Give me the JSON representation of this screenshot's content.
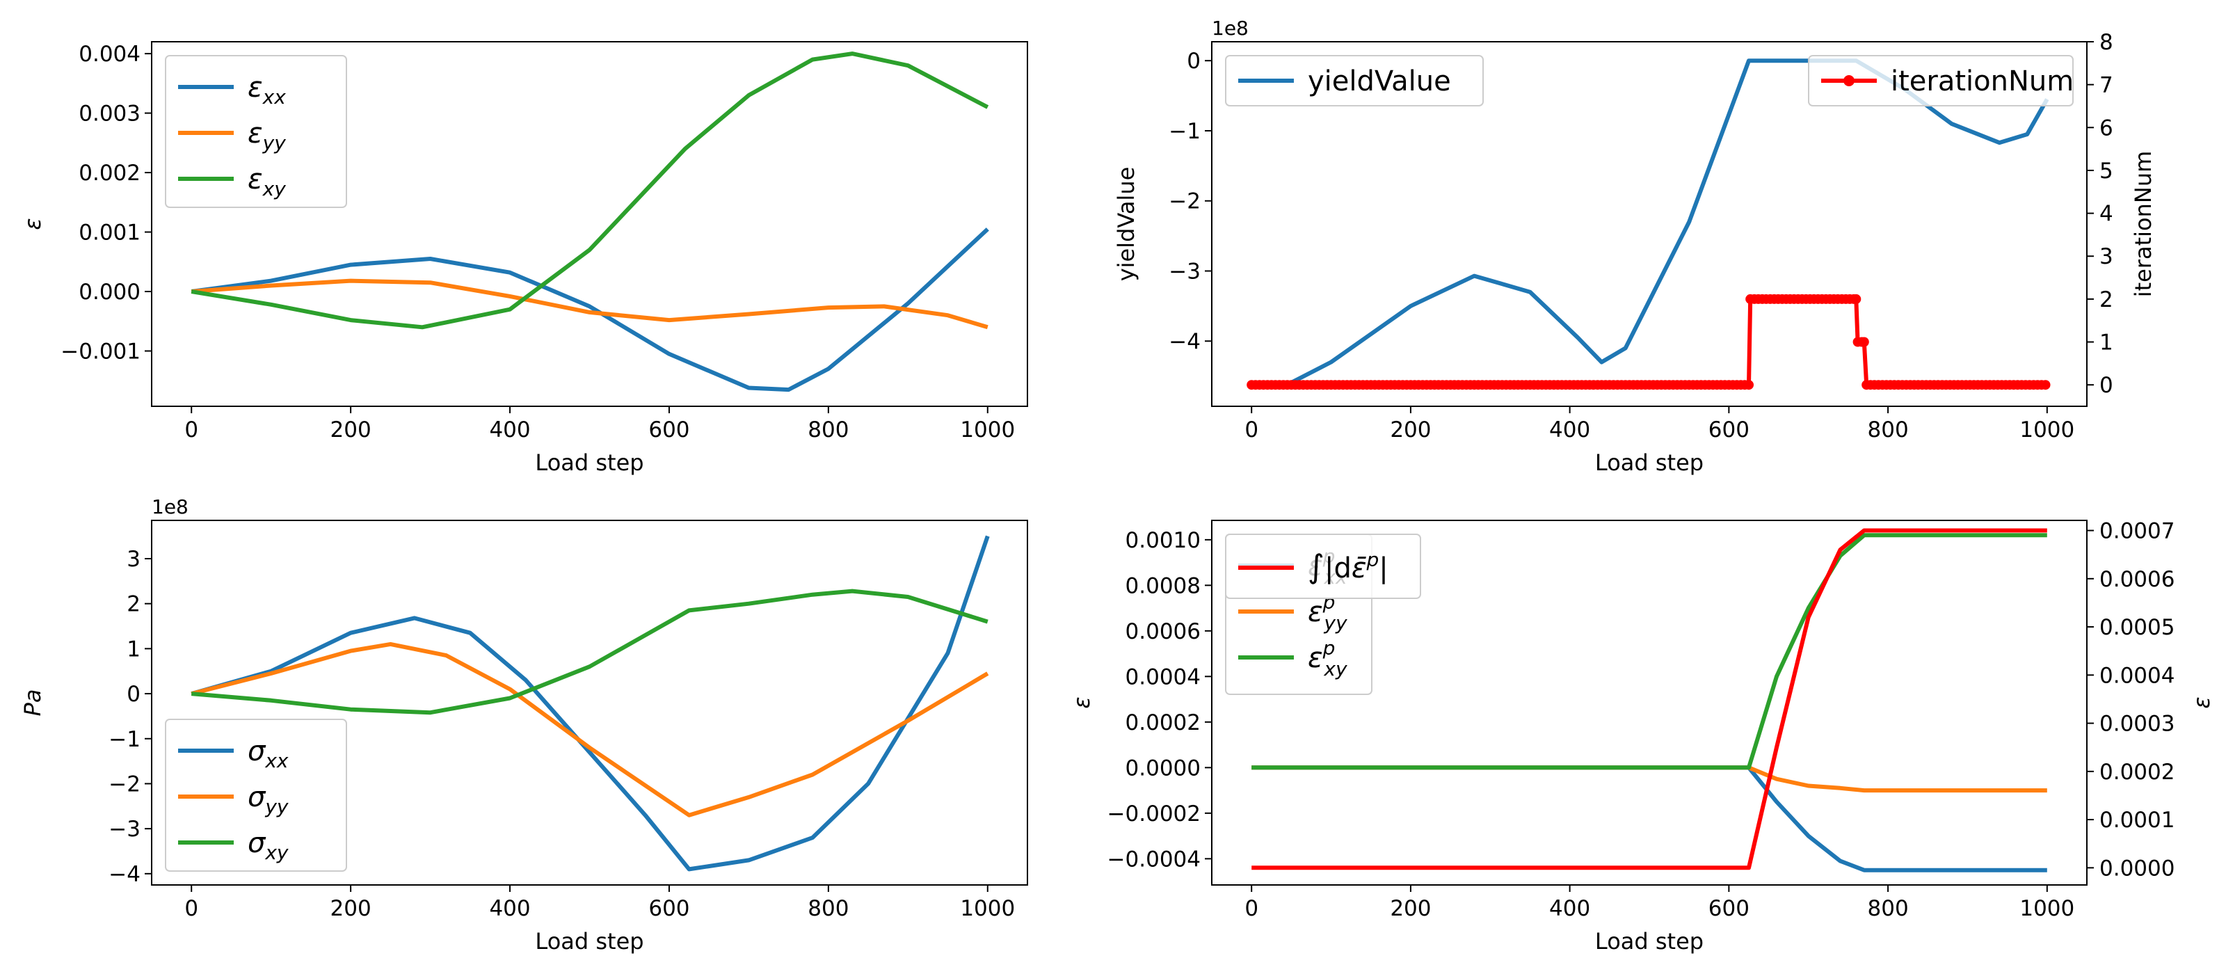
{
  "chart_data": [
    {
      "type": "line",
      "xlabel": "Load step",
      "ylabel": "ε",
      "xlim": [
        -50,
        1050
      ],
      "ylim": [
        -0.00193,
        0.0042
      ],
      "xticks": [
        "0",
        "200",
        "400",
        "600",
        "800",
        "1000"
      ],
      "yticks": [
        "−0.001",
        "0.000",
        "0.001",
        "0.002",
        "0.003",
        "0.004"
      ],
      "legend_position": "upper left",
      "grid": false,
      "series": [
        {
          "name": "εxx",
          "main": "ε",
          "sub": "xx",
          "color": "#1f77b4",
          "points": [
            [
              0,
              0
            ],
            [
              100,
              0.00018
            ],
            [
              200,
              0.00045
            ],
            [
              300,
              0.00055
            ],
            [
              400,
              0.00032
            ],
            [
              500,
              -0.00025
            ],
            [
              600,
              -0.00105
            ],
            [
              700,
              -0.00162
            ],
            [
              750,
              -0.00165
            ],
            [
              800,
              -0.0013
            ],
            [
              900,
              -0.0002
            ],
            [
              1000,
              0.00105
            ]
          ]
        },
        {
          "name": "εyy",
          "main": "ε",
          "sub": "yy",
          "color": "#ff7f0e",
          "points": [
            [
              0,
              0
            ],
            [
              100,
              0.0001
            ],
            [
              200,
              0.00018
            ],
            [
              300,
              0.00015
            ],
            [
              400,
              -8e-05
            ],
            [
              500,
              -0.00035
            ],
            [
              600,
              -0.00048
            ],
            [
              700,
              -0.00038
            ],
            [
              800,
              -0.00027
            ],
            [
              870,
              -0.00025
            ],
            [
              950,
              -0.0004
            ],
            [
              1000,
              -0.0006
            ]
          ]
        },
        {
          "name": "εxy",
          "main": "ε",
          "sub": "xy",
          "color": "#2ca02c",
          "points": [
            [
              0,
              0
            ],
            [
              100,
              -0.00022
            ],
            [
              200,
              -0.00048
            ],
            [
              290,
              -0.0006
            ],
            [
              400,
              -0.0003
            ],
            [
              500,
              0.0007
            ],
            [
              620,
              0.0024
            ],
            [
              700,
              0.0033
            ],
            [
              780,
              0.0039
            ],
            [
              830,
              0.004
            ],
            [
              900,
              0.0038
            ],
            [
              1000,
              0.0031
            ]
          ]
        }
      ]
    },
    {
      "type": "line",
      "xlabel": "Load step",
      "ylabel": "yieldValue",
      "ylabel_right": "iterationNum",
      "multiplier": "1e8",
      "xlim": [
        -50,
        1050
      ],
      "ylim": [
        -4.93,
        0.27
      ],
      "ylim_right": [
        -0.5,
        8.0
      ],
      "xticks": [
        "0",
        "200",
        "400",
        "600",
        "800",
        "1000"
      ],
      "yticks": [
        "−4",
        "−3",
        "−2",
        "−1",
        "0"
      ],
      "yticks_right": [
        "0",
        "1",
        "2",
        "3",
        "4",
        "5",
        "6",
        "7",
        "8"
      ],
      "legend_position": "upper left / upper right",
      "grid": false,
      "series": [
        {
          "name": "yieldValue",
          "color": "#1f77b4",
          "axis": "left",
          "points": [
            [
              40,
              -4.65
            ],
            [
              100,
              -4.3
            ],
            [
              200,
              -3.5
            ],
            [
              280,
              -3.07
            ],
            [
              350,
              -3.3
            ],
            [
              410,
              -3.95
            ],
            [
              440,
              -4.3
            ],
            [
              470,
              -4.1
            ],
            [
              550,
              -2.3
            ],
            [
              625,
              0
            ],
            [
              760,
              0
            ],
            [
              820,
              -0.4
            ],
            [
              880,
              -0.9
            ],
            [
              940,
              -1.17
            ],
            [
              975,
              -1.05
            ],
            [
              1000,
              -0.55
            ]
          ]
        },
        {
          "name": "iterationNum",
          "color": "#ff0000",
          "axis": "right",
          "markers": true,
          "points": [
            [
              0,
              0
            ],
            [
              625,
              0
            ],
            [
              627,
              2
            ],
            [
              760,
              2
            ],
            [
              762,
              1
            ],
            [
              770,
              1
            ],
            [
              773,
              0
            ],
            [
              1000,
              0
            ]
          ]
        }
      ]
    },
    {
      "type": "line",
      "xlabel": "Load step",
      "ylabel": "Pa",
      "multiplier": "1e8",
      "xlim": [
        -50,
        1050
      ],
      "ylim": [
        -4.25,
        3.85
      ],
      "xticks": [
        "0",
        "200",
        "400",
        "600",
        "800",
        "1000"
      ],
      "yticks": [
        "−4",
        "−3",
        "−2",
        "−1",
        "0",
        "1",
        "2",
        "3"
      ],
      "legend_position": "lower left",
      "grid": false,
      "series": [
        {
          "name": "σxx",
          "main": "σ",
          "sub": "xx",
          "color": "#1f77b4",
          "points": [
            [
              0,
              0
            ],
            [
              100,
              0.5
            ],
            [
              200,
              1.35
            ],
            [
              280,
              1.68
            ],
            [
              350,
              1.35
            ],
            [
              420,
              0.3
            ],
            [
              500,
              -1.3
            ],
            [
              570,
              -2.7
            ],
            [
              625,
              -3.9
            ],
            [
              700,
              -3.7
            ],
            [
              780,
              -3.2
            ],
            [
              850,
              -2.0
            ],
            [
              950,
              0.9
            ],
            [
              1000,
              3.5
            ]
          ]
        },
        {
          "name": "σyy",
          "main": "σ",
          "sub": "yy",
          "color": "#ff7f0e",
          "points": [
            [
              0,
              0
            ],
            [
              100,
              0.45
            ],
            [
              200,
              0.95
            ],
            [
              250,
              1.1
            ],
            [
              320,
              0.85
            ],
            [
              400,
              0.1
            ],
            [
              500,
              -1.2
            ],
            [
              625,
              -2.7
            ],
            [
              700,
              -2.3
            ],
            [
              780,
              -1.8
            ],
            [
              900,
              -0.6
            ],
            [
              1000,
              0.45
            ]
          ]
        },
        {
          "name": "σxy",
          "main": "σ",
          "sub": "xy",
          "color": "#2ca02c",
          "points": [
            [
              0,
              0
            ],
            [
              100,
              -0.15
            ],
            [
              200,
              -0.35
            ],
            [
              300,
              -0.42
            ],
            [
              400,
              -0.1
            ],
            [
              500,
              0.6
            ],
            [
              625,
              1.85
            ],
            [
              700,
              2.0
            ],
            [
              780,
              2.2
            ],
            [
              830,
              2.28
            ],
            [
              900,
              2.15
            ],
            [
              1000,
              1.6
            ]
          ]
        }
      ]
    },
    {
      "type": "line",
      "xlabel": "Load step",
      "ylabel": "ε",
      "ylabel_right": "ε",
      "xlim": [
        -50,
        1050
      ],
      "ylim": [
        -0.000515,
        0.001085
      ],
      "ylim_right": [
        -3.56e-05,
        0.000721
      ],
      "xticks": [
        "0",
        "200",
        "400",
        "600",
        "800",
        "1000"
      ],
      "yticks": [
        "−0.0004",
        "−0.0002",
        "0.0000",
        "0.0002",
        "0.0004",
        "0.0006",
        "0.0008",
        "0.0010"
      ],
      "yticks_right": [
        "0.0000",
        "0.0001",
        "0.0002",
        "0.0003",
        "0.0004",
        "0.0005",
        "0.0006",
        "0.0007"
      ],
      "legend_position": "upper left",
      "grid": false,
      "series": [
        {
          "name": "εxxp",
          "main": "ε",
          "sub": "xx",
          "sup": "p",
          "color": "#1f77b4",
          "axis": "left",
          "points": [
            [
              0,
              0
            ],
            [
              625,
              0
            ],
            [
              660,
              -0.00015
            ],
            [
              700,
              -0.0003
            ],
            [
              740,
              -0.00041
            ],
            [
              770,
              -0.00045
            ],
            [
              1000,
              -0.00045
            ]
          ]
        },
        {
          "name": "εyyp",
          "main": "ε",
          "sub": "yy",
          "sup": "p",
          "color": "#ff7f0e",
          "axis": "left",
          "points": [
            [
              0,
              0
            ],
            [
              625,
              0
            ],
            [
              660,
              -5e-05
            ],
            [
              700,
              -8e-05
            ],
            [
              740,
              -9e-05
            ],
            [
              770,
              -0.0001
            ],
            [
              1000,
              -0.0001
            ]
          ]
        },
        {
          "name": "εxyp",
          "main": "ε",
          "sub": "xy",
          "sup": "p",
          "color": "#2ca02c",
          "axis": "left",
          "points": [
            [
              0,
              0
            ],
            [
              625,
              0
            ],
            [
              660,
              0.0004
            ],
            [
              700,
              0.0007
            ],
            [
              740,
              0.00093
            ],
            [
              770,
              0.00102
            ],
            [
              1000,
              0.00102
            ]
          ]
        },
        {
          "name": "∫|dε̄p|",
          "color": "#ff0000",
          "axis": "right",
          "points": [
            [
              0,
              0
            ],
            [
              625,
              0
            ],
            [
              660,
              0.00025
            ],
            [
              700,
              0.00052
            ],
            [
              740,
              0.00066
            ],
            [
              770,
              0.0007
            ],
            [
              1000,
              0.0007
            ]
          ]
        }
      ]
    }
  ]
}
